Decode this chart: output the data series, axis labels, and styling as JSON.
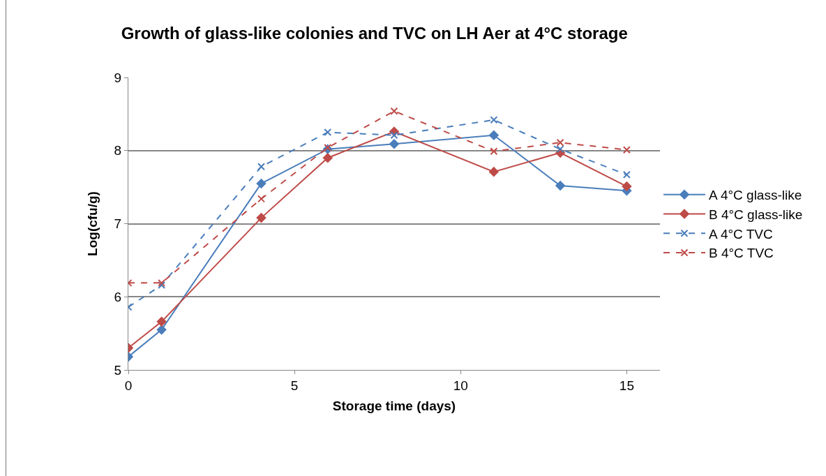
{
  "chart_data": {
    "type": "line",
    "title": "Growth of glass-like colonies and TVC on LH Aer at 4°C storage",
    "xlabel": "Storage time (days)",
    "ylabel": "Log(cfu/g)",
    "x": [
      0,
      1,
      4,
      6,
      8,
      11,
      13,
      15
    ],
    "xlim": [
      0,
      16
    ],
    "xticks": [
      0,
      5,
      10,
      15
    ],
    "ylim": [
      5,
      9
    ],
    "yticks": [
      5,
      6,
      7,
      8,
      9
    ],
    "grid": "y",
    "legend": "right",
    "series": [
      {
        "name": "A 4°C glass-like",
        "color": "#4a7ebb",
        "marker": "diamond",
        "line_style": "solid",
        "values": [
          5.18,
          5.55,
          7.55,
          8.02,
          8.09,
          8.21,
          7.52,
          7.45
        ]
      },
      {
        "name": "B 4°C glass-like",
        "color": "#be4b48",
        "marker": "diamond",
        "line_style": "solid",
        "values": [
          5.3,
          5.66,
          7.08,
          7.9,
          8.26,
          7.71,
          7.97,
          7.51
        ]
      },
      {
        "name": "A 4°C TVC",
        "color": "#4a7ebb",
        "marker": "cross",
        "line_style": "dashed",
        "values": [
          5.86,
          6.16,
          7.78,
          8.25,
          8.21,
          8.42,
          8.02,
          7.67
        ]
      },
      {
        "name": "B 4°C TVC",
        "color": "#be4b48",
        "marker": "cross",
        "line_style": "dashed",
        "values": [
          6.19,
          6.19,
          7.34,
          8.04,
          8.54,
          7.99,
          8.11,
          8.01
        ]
      }
    ]
  }
}
